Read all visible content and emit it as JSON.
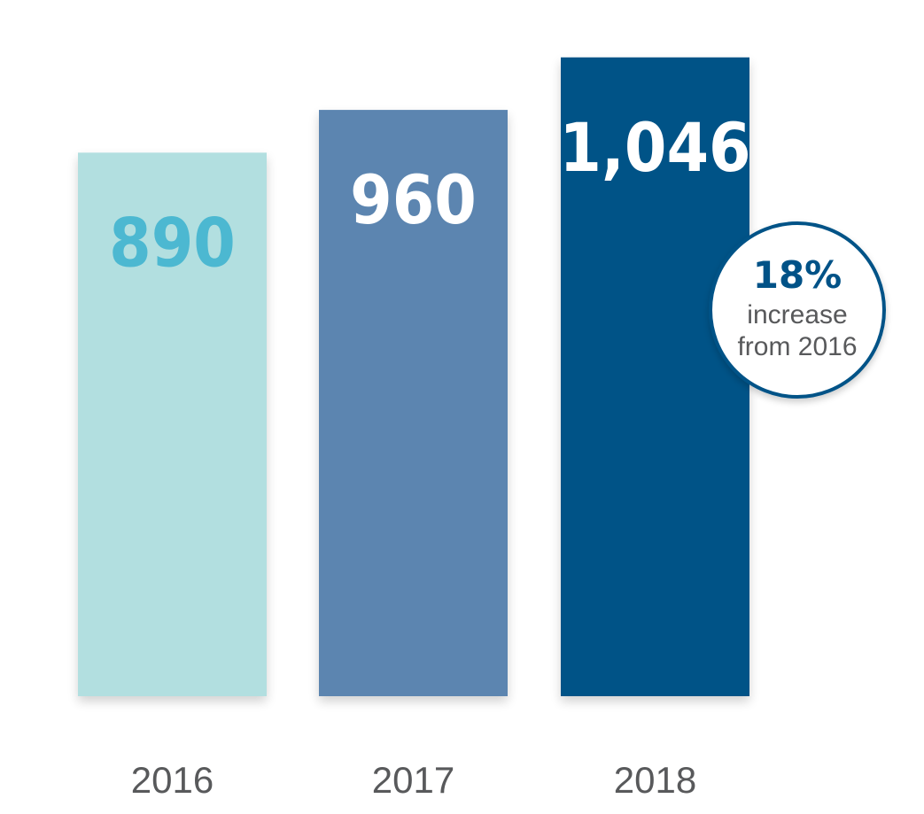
{
  "chart_data": {
    "type": "bar",
    "categories": [
      "2016",
      "2017",
      "2018"
    ],
    "values": [
      890,
      960,
      1046
    ],
    "value_labels": [
      "890",
      "960",
      "1,046"
    ],
    "bar_colors": [
      "#b2dfe0",
      "#5b85b0",
      "#005287"
    ],
    "value_label_colors": [
      "#4cb8d1",
      "#ffffff",
      "#ffffff"
    ],
    "ylim": [
      0,
      1100
    ],
    "grid": false,
    "legend": "none",
    "annotation": {
      "target": "2018",
      "percent": "18%",
      "line1": "increase",
      "line2": "from 2016",
      "accent": "#005287"
    }
  }
}
